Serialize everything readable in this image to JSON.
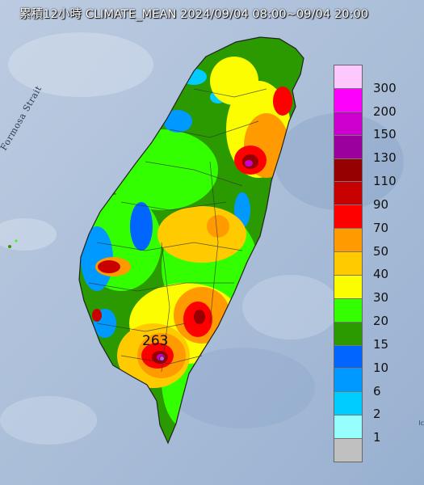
{
  "title": "累積12小時 CLIMATE_MEAN 2024/09/04 08:00~09/04 20:00",
  "strait_label": "Formosa Strait",
  "edge_label": "Ic",
  "peak": {
    "label": "263"
  },
  "legend": {
    "levels": [
      "300",
      "200",
      "150",
      "130",
      "110",
      "90",
      "70",
      "50",
      "40",
      "30",
      "20",
      "15",
      "10",
      "6",
      "2",
      "1"
    ],
    "colors": [
      "#fdc8fd",
      "#fc02fc",
      "#cc01d0",
      "#9b009f",
      "#960000",
      "#c80000",
      "#fe0000",
      "#ff9a00",
      "#ffcb00",
      "#fdfd01",
      "#33ff00",
      "#2a9a00",
      "#0066ff",
      "#0099ff",
      "#00ccff",
      "#98fdfd",
      "#c0c0c0"
    ]
  },
  "colors": {
    "sea": "#b9c9de",
    "coast_outline": "#222222"
  }
}
